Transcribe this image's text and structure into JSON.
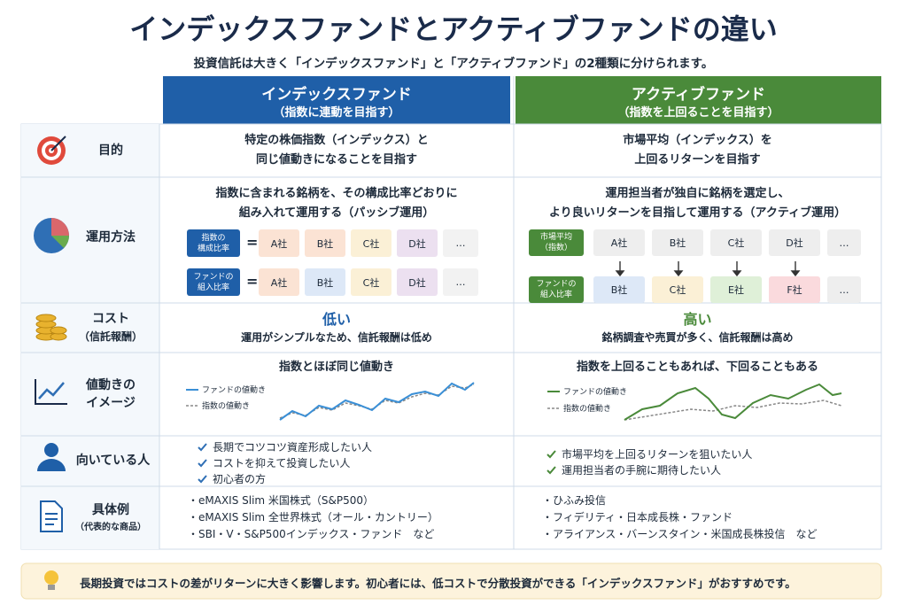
{
  "header": {
    "title": "インデックスファンドとアクティブファンドの違い",
    "subtitle": "投資信託は大きく「インデックスファンド」と「アクティブファンド」の2種類に分けられます。"
  },
  "columns": [
    {
      "name": "インデックスファンド",
      "note": "（指数に連動を目指す）"
    },
    {
      "name": "アクティブファンド",
      "note": "（指数を上回ることを目指す）"
    }
  ],
  "rows": [
    {
      "label": [
        "目的"
      ],
      "index": {
        "text": [
          "特定の株価指数（インデックス）と",
          "同じ値動きになることを目指す"
        ]
      },
      "active": {
        "text": [
          "市場平均（インデックス）を",
          "上回るリターンを目指す"
        ]
      }
    },
    {
      "label": [
        "運用方法"
      ],
      "index": {
        "text": [
          "指数に含まれる銘柄を、その構成比率どおりに",
          "組み入れて運用する（パッシブ運用）"
        ],
        "operator": "=",
        "groups": [
          {
            "label": [
              "指数の",
              "構成比率"
            ],
            "items": [
              "A社",
              "B社",
              "C社",
              "D社",
              "…"
            ]
          },
          {
            "label": [
              "ファンドの",
              "組入比率"
            ],
            "items": [
              "A社",
              "B社",
              "C社",
              "D社",
              "…"
            ]
          }
        ]
      },
      "active": {
        "text": [
          "運用担当者が独自に銘柄を選定し、",
          "より良いリターンを目指して運用する（アクティブ運用）"
        ],
        "groups": [
          {
            "label": [
              "市場平均",
              "（指数）"
            ],
            "items": [
              "A社",
              "B社",
              "C社",
              "D社",
              "…"
            ]
          },
          {
            "label": [
              "ファンドの",
              "組入比率"
            ],
            "items": [
              "B社",
              "C社",
              "E社",
              "F社",
              "…"
            ]
          }
        ]
      }
    },
    {
      "label": [
        "コスト",
        "（信託報酬）"
      ],
      "index": {
        "headline": "低い",
        "text": [
          "運用がシンプルなため、信託報酬は低め"
        ]
      },
      "active": {
        "headline": "高い",
        "text": [
          "銘柄調査や売買が多く、信託報酬は高め"
        ]
      }
    },
    {
      "label": [
        "値動きの",
        "イメージ"
      ],
      "index": {
        "text": [
          "指数とほぼ同じ値動き"
        ],
        "legend": [
          "ファンドの値動き",
          "指数の値動き"
        ]
      },
      "active": {
        "text": [
          "指数を上回ることもあれば、下回ることもある"
        ],
        "legend": [
          "ファンドの値動き",
          "指数の値動き"
        ]
      }
    },
    {
      "label": [
        "向いている人"
      ],
      "index": {
        "items": [
          "長期でコツコツ資産形成したい人",
          "コストを抑えて投資したい人",
          "初心者の方"
        ]
      },
      "active": {
        "items": [
          "市場平均を上回るリターンを狙いたい人",
          "運用担当者の手腕に期待したい人"
        ]
      }
    },
    {
      "label": [
        "具体例",
        "（代表的な商品）"
      ],
      "index": {
        "items": [
          "・eMAXIS Slim 米国株式（S&P500）",
          "・eMAXIS Slim 全世界株式（オール・カントリー）",
          "・SBI・V・S&P500インデックス・ファンド　など"
        ]
      },
      "active": {
        "items": [
          "・ひふみ投信",
          "・フィデリティ・日本成長株・ファンド",
          "・アライアンス・バーンスタイン・米国成長株投信　など"
        ]
      }
    }
  ],
  "footer": "長期投資ではコストの差がリターンに大きく影響します。初心者には、低コストで分散投資ができる「インデックスファンド」がおすすめです。"
}
